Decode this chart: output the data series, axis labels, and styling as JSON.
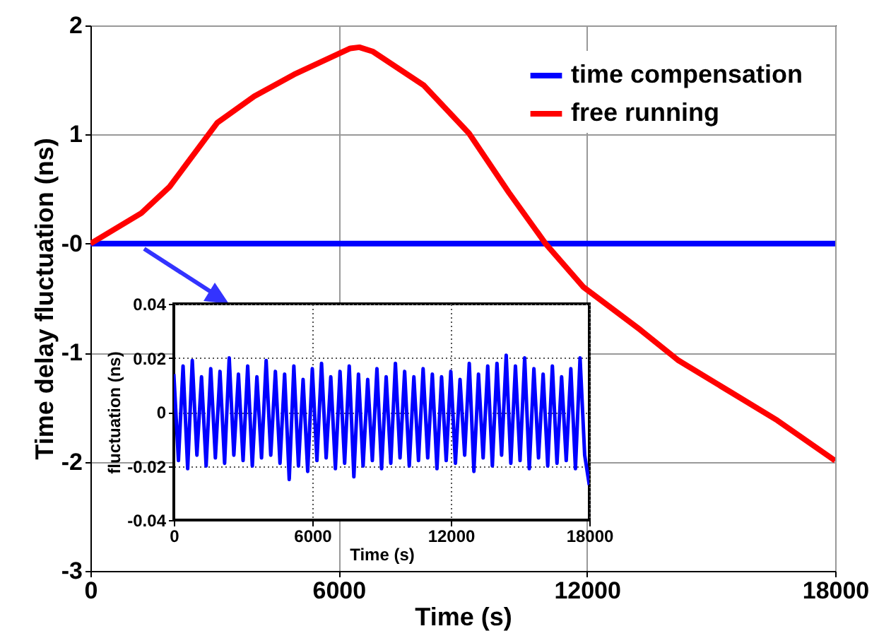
{
  "chart_data": [
    {
      "type": "line",
      "xlabel": "Time (s)",
      "ylabel": "Time delay fluctuation (ns)",
      "xlim": [
        0,
        18000
      ],
      "ylim": [
        -3,
        2
      ],
      "xticks": [
        0,
        6000,
        12000,
        18000
      ],
      "yticks": [
        -3,
        -2,
        -1,
        {
          "value": 0,
          "label": "-0"
        },
        1,
        2
      ],
      "grid": true,
      "legend": "top right",
      "marker": "none",
      "line_style": "solid",
      "series": [
        {
          "name": "time compensation",
          "color": "#0000ff",
          "x": [
            0,
            2000,
            4000,
            6000,
            8000,
            10000,
            12000,
            14000,
            16000,
            18000
          ],
          "values": [
            0,
            0,
            0,
            0,
            0,
            0,
            0,
            0,
            0,
            0
          ]
        },
        {
          "name": "free running",
          "color": "#ff0000",
          "x": [
            0,
            1230,
            1910,
            3070,
            3960,
            4920,
            6280,
            6500,
            6830,
            8060,
            9150,
            10110,
            11000,
            11920,
            13290,
            14210,
            15470,
            16600,
            18000
          ],
          "values": [
            0,
            0.28,
            0.52,
            1.11,
            1.35,
            1.55,
            1.79,
            1.8,
            1.76,
            1.45,
            1.01,
            0.47,
            0,
            -0.4,
            -0.79,
            -1.07,
            -1.36,
            -1.62,
            -1.99
          ]
        }
      ]
    },
    {
      "type": "line",
      "xlabel": "Time (s)",
      "ylabel": "fluctuation (ns)",
      "xlim": [
        0,
        18000
      ],
      "ylim": [
        -0.04,
        0.04
      ],
      "xticks": [
        0,
        6000,
        12000,
        18000
      ],
      "yticks": [
        -0.04,
        -0.02,
        0,
        0.02,
        0.04
      ],
      "grid": true,
      "marker": "none",
      "line_style": "solid",
      "series": [
        {
          "color": "#0000ff",
          "x": [
            0,
            200,
            400,
            600,
            800,
            1000,
            1200,
            1400,
            1600,
            1800,
            2000,
            2200,
            2400,
            2600,
            2800,
            3000,
            3200,
            3400,
            3600,
            3800,
            4000,
            4200,
            4400,
            4600,
            4800,
            5000,
            5200,
            5400,
            5600,
            5800,
            6000,
            6200,
            6400,
            6600,
            6800,
            7000,
            7200,
            7400,
            7600,
            7800,
            8000,
            8200,
            8400,
            8600,
            8800,
            9000,
            9200,
            9400,
            9600,
            9800,
            10000,
            10200,
            10400,
            10600,
            10800,
            11000,
            11200,
            11400,
            11600,
            11800,
            12000,
            12200,
            12400,
            12600,
            12800,
            13000,
            13200,
            13400,
            13600,
            13800,
            14000,
            14200,
            14400,
            14600,
            14800,
            15000,
            15200,
            15400,
            15600,
            15800,
            16000,
            16200,
            16400,
            16600,
            16800,
            17000,
            17200,
            17400,
            17600,
            17800,
            18000
          ],
          "values": [
            0.014,
            -0.018,
            0.017,
            -0.021,
            0.019,
            -0.016,
            0.013,
            -0.02,
            0.016,
            -0.017,
            0.015,
            -0.019,
            0.02,
            -0.016,
            0.014,
            -0.018,
            0.017,
            -0.02,
            0.013,
            -0.017,
            0.019,
            -0.016,
            0.015,
            -0.019,
            0.014,
            -0.025,
            0.017,
            -0.02,
            0.012,
            -0.022,
            0.016,
            -0.018,
            0.018,
            -0.017,
            0.013,
            -0.021,
            0.015,
            -0.019,
            0.017,
            -0.024,
            0.014,
            -0.02,
            0.012,
            -0.018,
            0.016,
            -0.021,
            0.013,
            -0.019,
            0.018,
            -0.017,
            0.015,
            -0.02,
            0.013,
            -0.018,
            0.016,
            -0.017,
            0.014,
            -0.021,
            0.013,
            -0.018,
            0.015,
            -0.019,
            0.012,
            -0.016,
            0.018,
            -0.022,
            0.014,
            -0.017,
            0.017,
            -0.02,
            0.018,
            -0.016,
            0.021,
            -0.019,
            0.017,
            -0.018,
            0.02,
            -0.021,
            0.016,
            -0.017,
            0.014,
            -0.02,
            0.017,
            -0.019,
            0.013,
            -0.018,
            0.016,
            -0.021,
            0.02,
            -0.016,
            -0.027
          ]
        }
      ]
    }
  ]
}
